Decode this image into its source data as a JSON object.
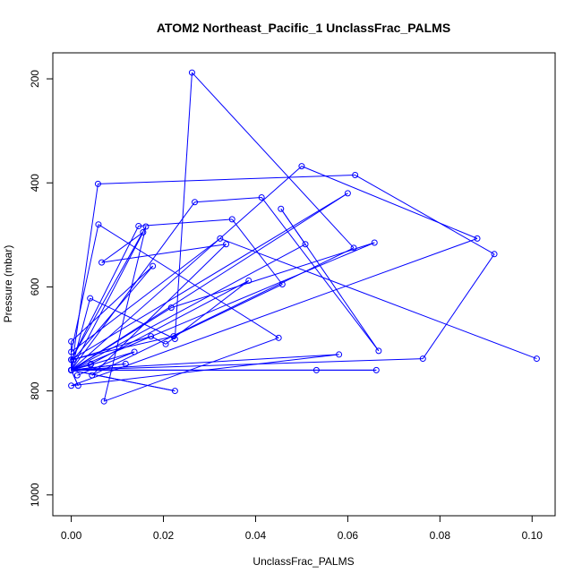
{
  "chart_data": {
    "type": "line",
    "title": "ATOM2 Northeast_Pacific_1 UnclassFrac_PALMS",
    "xlabel": "UnclassFrac_PALMS",
    "ylabel": "Pressure (mbar)",
    "xlim": [
      -0.004,
      0.105
    ],
    "ylim": [
      1040,
      150
    ],
    "y_reversed": true,
    "x_ticks": [
      0.0,
      0.02,
      0.04,
      0.06,
      0.08,
      0.1
    ],
    "x_tick_labels": [
      "0.00",
      "0.02",
      "0.04",
      "0.06",
      "0.08",
      "0.10"
    ],
    "y_ticks": [
      200,
      400,
      600,
      800,
      1000
    ],
    "y_tick_labels": [
      "200",
      "400",
      "600",
      "800",
      "1000"
    ],
    "color": "#0000ff",
    "marker": "open-circle",
    "grid": false,
    "legend": false,
    "x": [
      0.0013,
      0.0137,
      0.0042,
      0.0,
      0.0662,
      0.0532,
      0.0,
      0.0118,
      0.0,
      0.0156,
      0.0066,
      0.0336,
      0.0045,
      0.0613,
      0.0262,
      0.0225,
      0.0041,
      0.0,
      0.0581,
      0.0,
      0.0881,
      0.05,
      0.0,
      0.0225,
      0.0,
      0.0015,
      0.0,
      0.0658,
      0.0217,
      0.0,
      0.0043,
      0.0385,
      0.0205,
      0.0173,
      0.0004,
      0.0177,
      0.0,
      0.0,
      0.0763,
      0.0918,
      0.0616,
      0.0058,
      0.0,
      0.0268,
      0.0413,
      0.0667,
      0.0455,
      0.0508,
      0.0,
      0.06,
      0.0,
      0.0146,
      0.0349,
      0.0458,
      0.0222,
      0.0,
      0.0162,
      0.0071,
      0.045,
      0.0059,
      0.0,
      0.0323,
      0.101
    ],
    "y": [
      770,
      725,
      750,
      760,
      760,
      760,
      760,
      748,
      760,
      495,
      553,
      518,
      770,
      525,
      188,
      700,
      622,
      760,
      730,
      790,
      507,
      368,
      760,
      800,
      760,
      790,
      760,
      515,
      640,
      760,
      748,
      588,
      710,
      695,
      740,
      560,
      705,
      760,
      738,
      537,
      385,
      402,
      760,
      437,
      428,
      723,
      450,
      518,
      760,
      420,
      740,
      483,
      470,
      595,
      695,
      740,
      484,
      820,
      698,
      480,
      725,
      507,
      738
    ]
  }
}
